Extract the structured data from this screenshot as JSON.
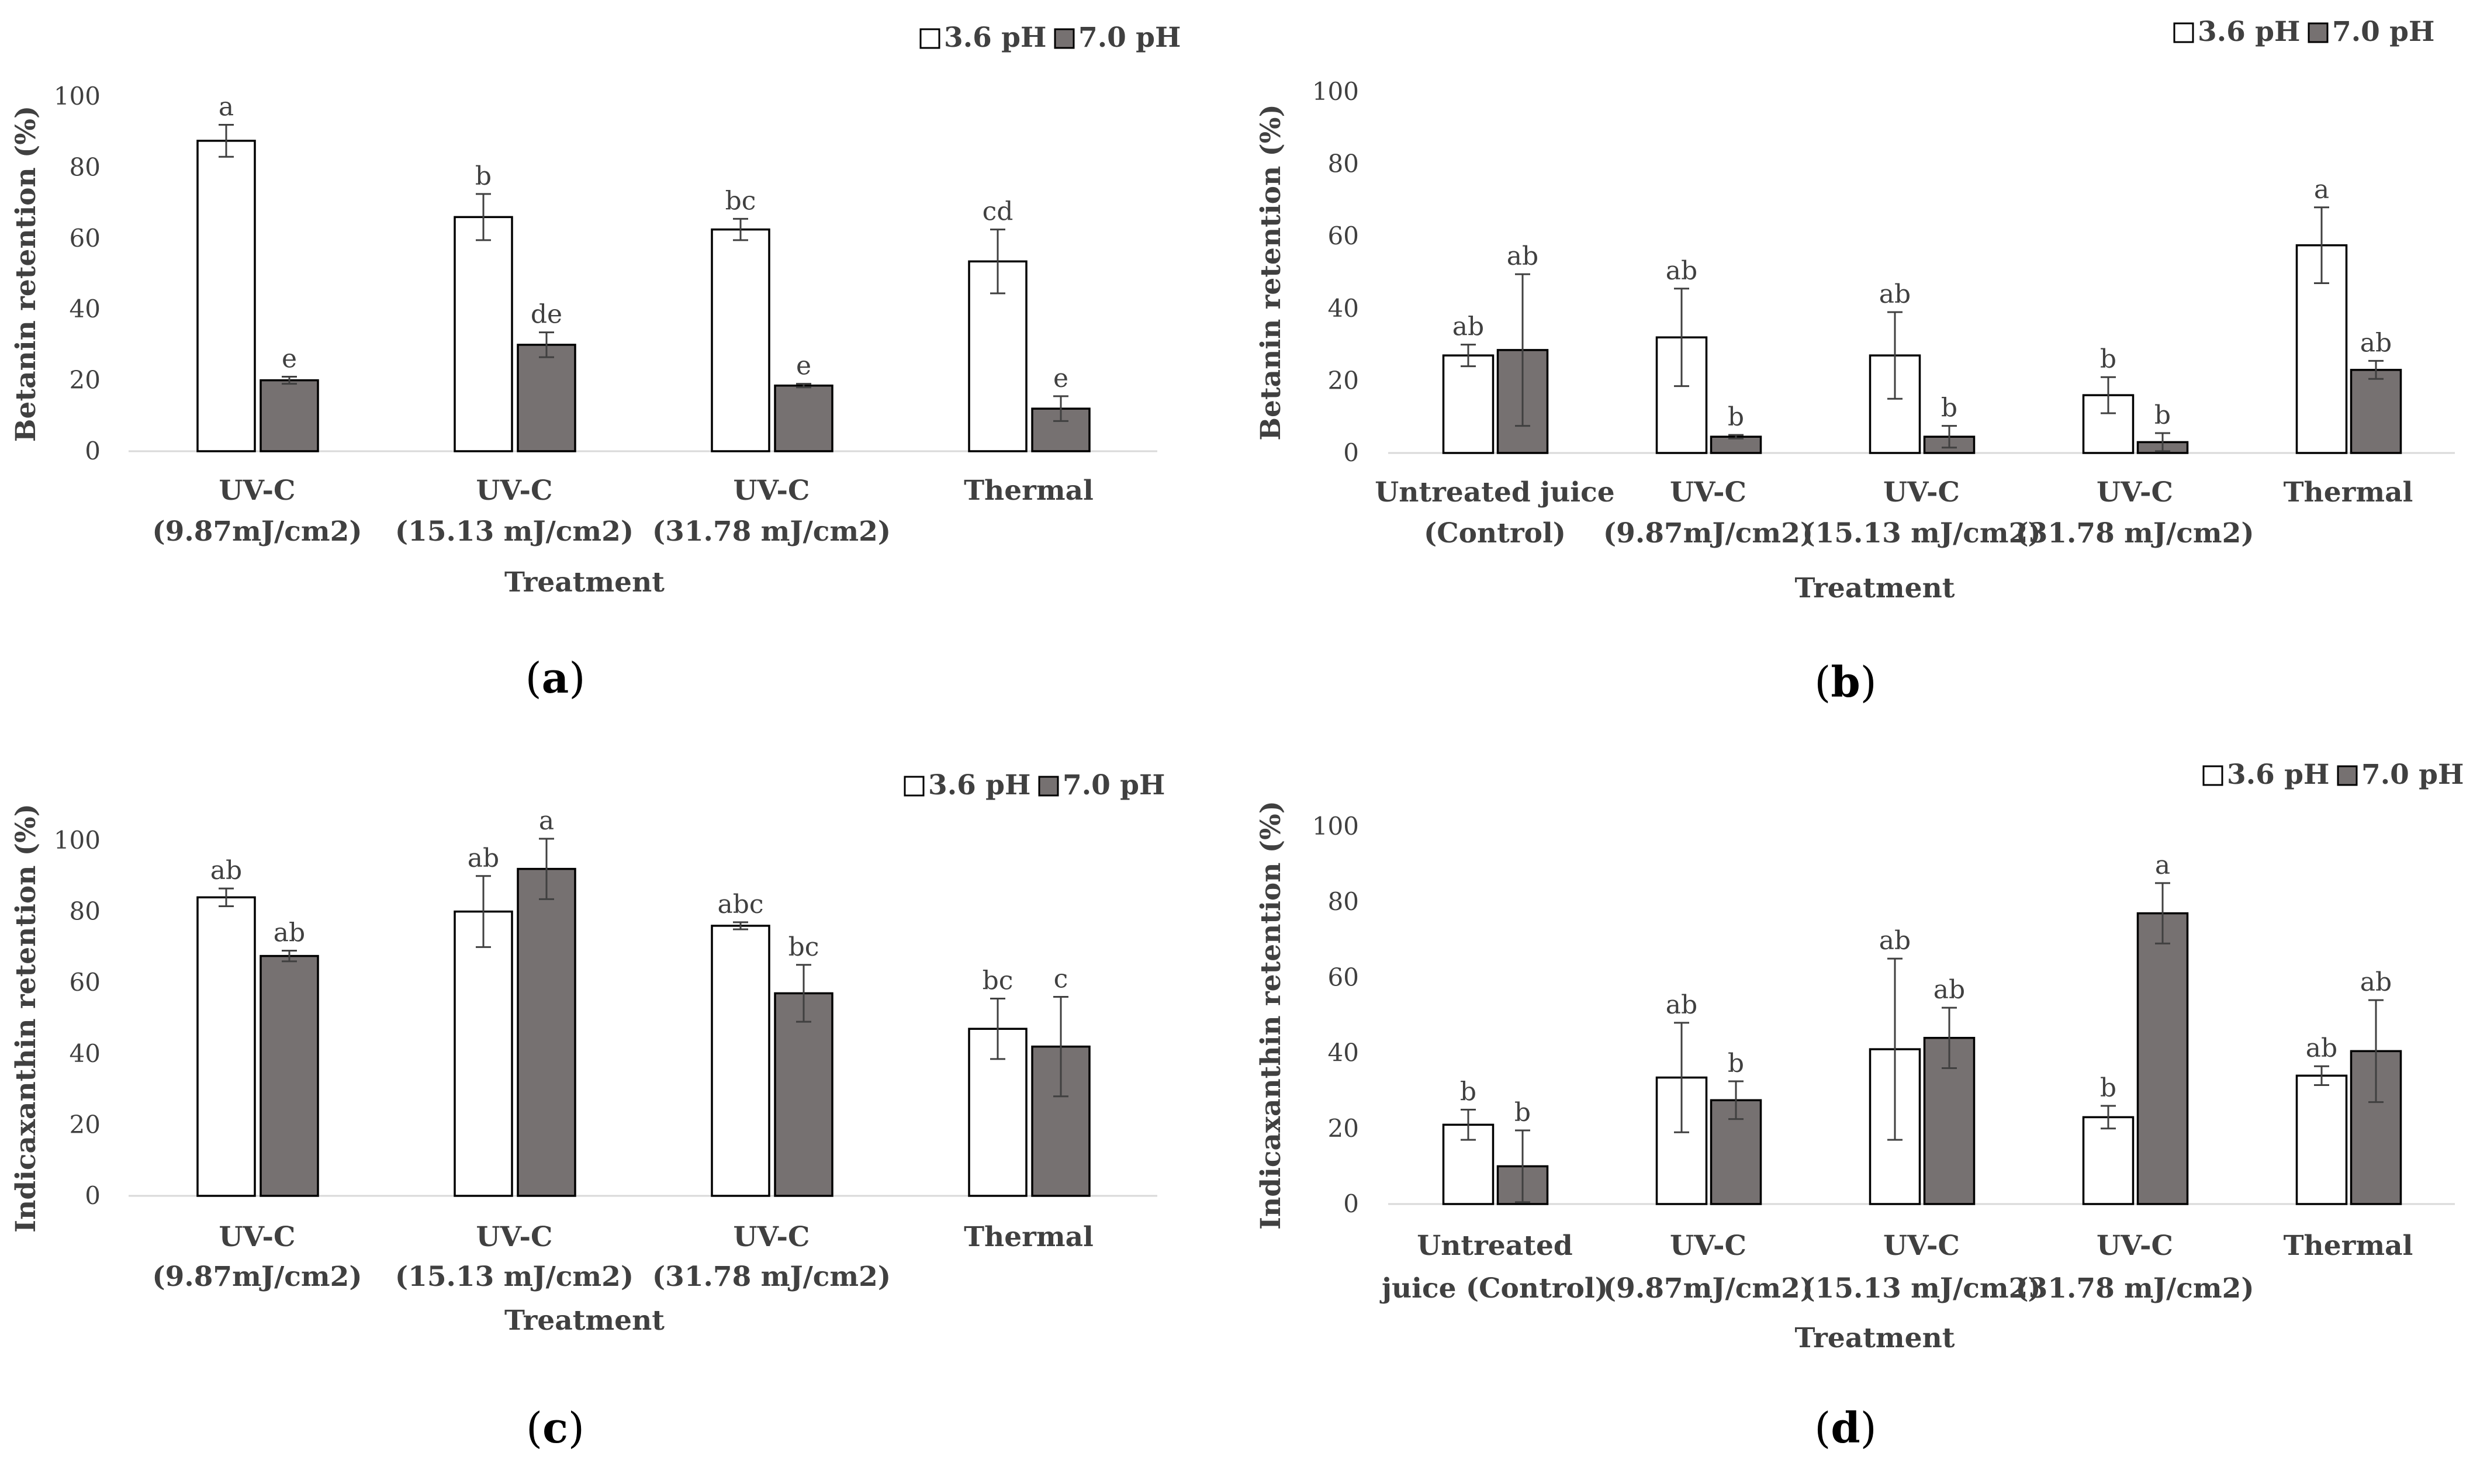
{
  "colors": {
    "series_a": "#ffffff",
    "series_b": "#767171",
    "outline": "#000000",
    "axis": "#d9d9d9",
    "text": "#404040"
  },
  "chart_data": [
    {
      "type": "bar",
      "panel_label": "a",
      "xlabel": "Treatment",
      "ylabel": "Betanin retention (%)",
      "ylim": [
        0,
        100
      ],
      "yticks": [
        0,
        20,
        40,
        60,
        80,
        100
      ],
      "grid": false,
      "legend": "top-right",
      "categories": [
        [
          "UV-C",
          "(9.87mJ/cm2)"
        ],
        [
          "UV-C",
          "(15.13 mJ/cm2)"
        ],
        [
          "UV-C",
          "(31.78 mJ/cm2)"
        ],
        [
          "Thermal"
        ]
      ],
      "series": [
        {
          "name": "3.6 pH",
          "values": [
            87.5,
            66,
            62.5,
            53.5
          ],
          "errors": [
            4.5,
            6.5,
            3,
            9
          ],
          "labels": [
            "a",
            "b",
            "bc",
            "cd"
          ]
        },
        {
          "name": "7.0 pH",
          "values": [
            20,
            30,
            18.5,
            12
          ],
          "errors": [
            1,
            3.5,
            0.5,
            3.5
          ],
          "labels": [
            "e",
            "de",
            "e",
            "e"
          ]
        }
      ]
    },
    {
      "type": "bar",
      "panel_label": "b",
      "xlabel": "Treatment",
      "ylabel": "Betanin retention (%)",
      "ylim": [
        0,
        100
      ],
      "yticks": [
        0,
        20,
        40,
        60,
        80,
        100
      ],
      "grid": false,
      "legend": "top-right",
      "categories": [
        [
          "Untreated juice",
          "(Control)"
        ],
        [
          "UV-C",
          "(9.87mJ/cm2)"
        ],
        [
          "UV-C",
          "(15.13 mJ/cm2)"
        ],
        [
          "UV-C",
          "(31.78 mJ/cm2)"
        ],
        [
          "Thermal"
        ]
      ],
      "series": [
        {
          "name": "3.6 pH",
          "values": [
            27,
            32,
            27,
            16,
            57.5
          ],
          "errors": [
            3,
            13.5,
            12,
            5,
            10.5
          ],
          "labels": [
            "ab",
            "ab",
            "ab",
            "b",
            "a"
          ]
        },
        {
          "name": "7.0 pH",
          "values": [
            28.5,
            4.5,
            4.5,
            3,
            23
          ],
          "errors": [
            21,
            0.5,
            3,
            2.5,
            2.5
          ],
          "labels": [
            "ab",
            "b",
            "b",
            "b",
            "ab"
          ]
        }
      ]
    },
    {
      "type": "bar",
      "panel_label": "c",
      "xlabel": "Treatment",
      "ylabel": "Indicaxanthin retention (%)",
      "ylim": [
        0,
        100
      ],
      "yticks": [
        0,
        20,
        40,
        60,
        80,
        100
      ],
      "grid": false,
      "legend": "top-right",
      "categories": [
        [
          "UV-C",
          "(9.87mJ/cm2)"
        ],
        [
          "UV-C",
          "(15.13 mJ/cm2)"
        ],
        [
          "UV-C",
          "(31.78 mJ/cm2)"
        ],
        [
          "Thermal"
        ]
      ],
      "series": [
        {
          "name": "3.6 pH",
          "values": [
            84,
            80,
            76,
            47
          ],
          "errors": [
            2.5,
            10,
            1,
            8.5
          ],
          "labels": [
            "ab",
            "ab",
            "abc",
            "bc"
          ]
        },
        {
          "name": "7.0 pH",
          "values": [
            67.5,
            92,
            57,
            42
          ],
          "errors": [
            1.5,
            8.5,
            8,
            14
          ],
          "labels": [
            "ab",
            "a",
            "bc",
            "c"
          ]
        }
      ]
    },
    {
      "type": "bar",
      "panel_label": "d",
      "xlabel": "Treatment",
      "ylabel": "Indicaxanthin retention (%)",
      "ylim": [
        0,
        100
      ],
      "yticks": [
        0,
        20,
        40,
        60,
        80,
        100
      ],
      "grid": false,
      "legend": "top-right",
      "categories": [
        [
          "Untreated",
          "juice (Control)"
        ],
        [
          "UV-C",
          "(9.87mJ/cm2)"
        ],
        [
          "UV-C",
          "(15.13 mJ/cm2)"
        ],
        [
          "UV-C",
          "(31.78 mJ/cm2)"
        ],
        [
          "Thermal"
        ]
      ],
      "series": [
        {
          "name": "3.6 pH",
          "values": [
            21,
            33.5,
            41,
            23,
            34
          ],
          "errors": [
            4,
            14.5,
            24,
            3,
            2.5
          ],
          "labels": [
            "b",
            "ab",
            "ab",
            "b",
            "ab"
          ]
        },
        {
          "name": "7.0 pH",
          "values": [
            10,
            27.5,
            44,
            77,
            40.5
          ],
          "errors": [
            9.5,
            5,
            8,
            8,
            13.5
          ],
          "labels": [
            "b",
            "b",
            "ab",
            "a",
            "ab"
          ]
        }
      ]
    }
  ]
}
